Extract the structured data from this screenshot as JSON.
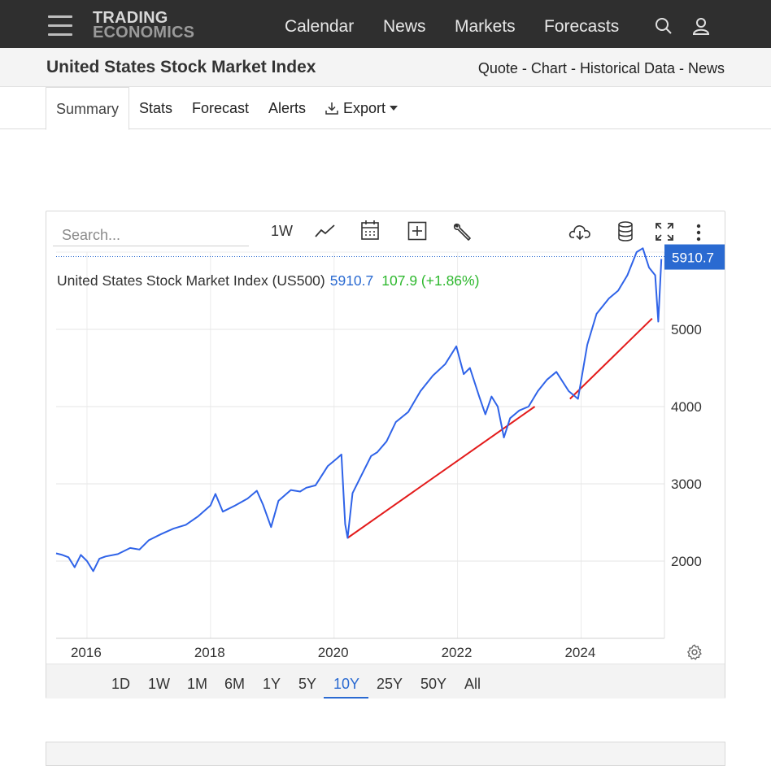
{
  "nav": {
    "logo_line1": "TRADING",
    "logo_line2": "ECONOMICS",
    "links": [
      "Calendar",
      "News",
      "Markets",
      "Forecasts"
    ],
    "icons": [
      "search-icon",
      "user-icon",
      "menu-icon"
    ]
  },
  "header": {
    "title": "United States Stock Market Index",
    "links": [
      "Quote",
      "Chart",
      "Historical Data",
      "News"
    ],
    "separator": " - "
  },
  "tabs": {
    "items": [
      "Summary",
      "Stats",
      "Forecast",
      "Alerts",
      "Export"
    ],
    "active": "Summary"
  },
  "chart_toolbar": {
    "search_placeholder": "Search...",
    "frequency": "1W",
    "icons": [
      "line-chart-icon",
      "calendar-icon",
      "compare-plus-icon",
      "wrench-icon",
      "download-cloud-icon",
      "database-icon",
      "fullscreen-icon",
      "more-vertical-icon"
    ]
  },
  "quote": {
    "name": "United States Stock Market Index (US500)",
    "price": "5910.7",
    "change": "107.9 (+1.86%)",
    "price_color": "#2a6ad1",
    "change_color": "#2eb82e",
    "last_label": "5910.7"
  },
  "ranges": {
    "items": [
      "1D",
      "1W",
      "1M",
      "6M",
      "1Y",
      "5Y",
      "10Y",
      "25Y",
      "50Y",
      "All"
    ],
    "active": "10Y"
  },
  "chart_data": {
    "type": "line",
    "title": "United States Stock Market Index (US500)",
    "x_tick_labels": [
      "2016",
      "2018",
      "2020",
      "2022",
      "2024"
    ],
    "y_tick_labels": [
      "2000",
      "3000",
      "4000",
      "5000"
    ],
    "ylim": [
      1000,
      6000
    ],
    "xlim": [
      2015.5,
      2025.35
    ],
    "grid": true,
    "line_color": "#2f63e8",
    "trend_color": "#e31b1b",
    "series": [
      {
        "x": [
          2015.5,
          2015.6,
          2015.7,
          2015.8,
          2015.9,
          2016.0,
          2016.1,
          2016.2,
          2016.3,
          2016.5,
          2016.7,
          2016.85,
          2017.0,
          2017.2,
          2017.4,
          2017.6,
          2017.8,
          2018.0,
          2018.08,
          2018.2,
          2018.4,
          2018.6,
          2018.75,
          2018.85,
          2018.98,
          2019.1,
          2019.3,
          2019.45,
          2019.55,
          2019.7,
          2019.9,
          2020.05,
          2020.12,
          2020.18,
          2020.22,
          2020.3,
          2020.45,
          2020.6,
          2020.7,
          2020.85,
          2021.0,
          2021.2,
          2021.4,
          2021.6,
          2021.8,
          2021.98,
          2022.1,
          2022.2,
          2022.35,
          2022.45,
          2022.55,
          2022.65,
          2022.75,
          2022.85,
          2023.0,
          2023.15,
          2023.3,
          2023.45,
          2023.6,
          2023.8,
          2023.95,
          2024.1,
          2024.25,
          2024.45,
          2024.6,
          2024.75,
          2024.9,
          2025.0,
          2025.1,
          2025.2,
          2025.25,
          2025.3
        ],
        "y": [
          2100,
          2080,
          2050,
          1920,
          2080,
          2000,
          1870,
          2030,
          2060,
          2090,
          2170,
          2150,
          2270,
          2350,
          2420,
          2470,
          2580,
          2720,
          2870,
          2640,
          2720,
          2810,
          2910,
          2730,
          2440,
          2780,
          2920,
          2900,
          2950,
          2980,
          3230,
          3330,
          3380,
          2480,
          2300,
          2880,
          3120,
          3360,
          3410,
          3550,
          3800,
          3930,
          4200,
          4400,
          4550,
          4780,
          4420,
          4500,
          4130,
          3900,
          4130,
          4000,
          3600,
          3850,
          3950,
          4000,
          4200,
          4350,
          4450,
          4200,
          4100,
          4800,
          5200,
          5400,
          5500,
          5700,
          6000,
          6050,
          5800,
          5700,
          5100,
          5910
        ]
      }
    ],
    "trendlines": [
      {
        "x": [
          2020.22,
          2023.25
        ],
        "y": [
          2300,
          4000
        ]
      },
      {
        "x": [
          2023.82,
          2025.15
        ],
        "y": [
          4100,
          5140
        ]
      }
    ]
  }
}
